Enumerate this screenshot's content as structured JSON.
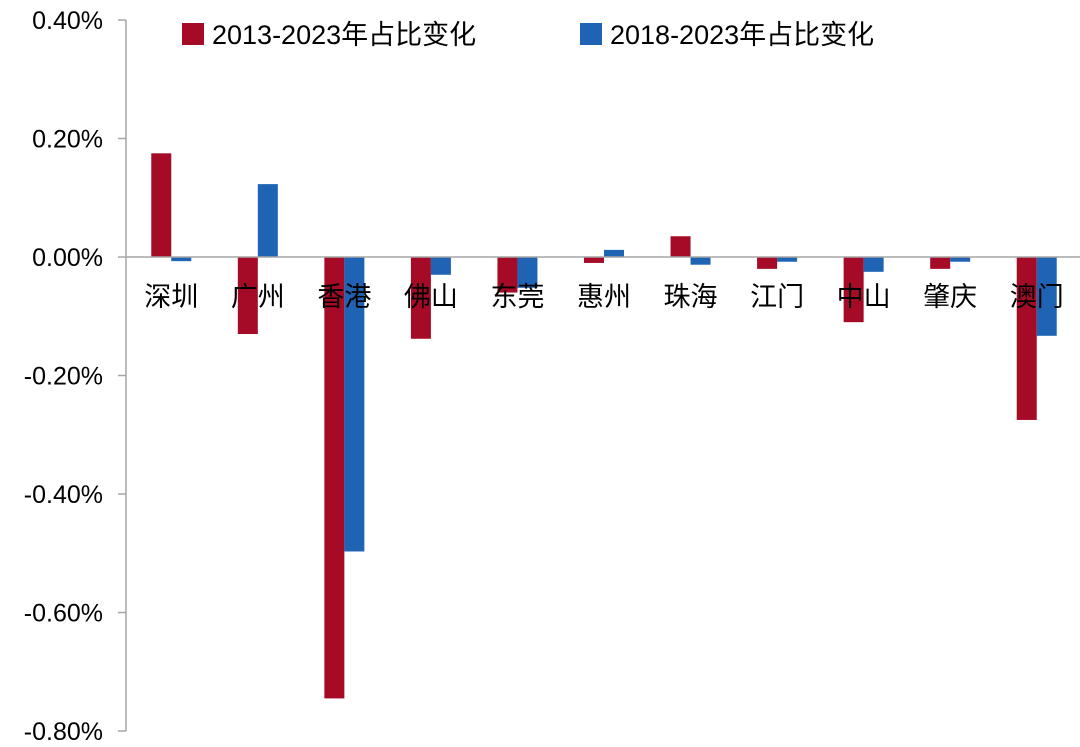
{
  "chart_data": {
    "type": "bar",
    "categories": [
      "深圳",
      "广州",
      "香港",
      "佛山",
      "东莞",
      "惠州",
      "珠海",
      "江门",
      "中山",
      "肇庆",
      "澳门"
    ],
    "series": [
      {
        "name": "2013-2023年占比变化",
        "color": "#A50A26",
        "values": [
          0.175,
          -0.13,
          -0.745,
          -0.138,
          -0.06,
          -0.01,
          0.035,
          -0.02,
          -0.11,
          -0.02,
          -0.275
        ]
      },
      {
        "name": "2018-2023年占比变化",
        "color": "#1F63B4",
        "values": [
          -0.007,
          0.123,
          -0.497,
          -0.03,
          -0.052,
          0.012,
          -0.013,
          -0.008,
          -0.025,
          -0.008,
          -0.133
        ]
      }
    ],
    "ylim": [
      -0.8,
      0.4
    ],
    "yticks": [
      0.4,
      0.2,
      0.0,
      -0.2,
      -0.4,
      -0.6,
      -0.8
    ],
    "ytick_labels": [
      "0.40%",
      "0.20%",
      "0.00%",
      "-0.20%",
      "-0.40%",
      "-0.60%",
      "-0.80%"
    ],
    "legend_position": "top",
    "grid": false
  }
}
